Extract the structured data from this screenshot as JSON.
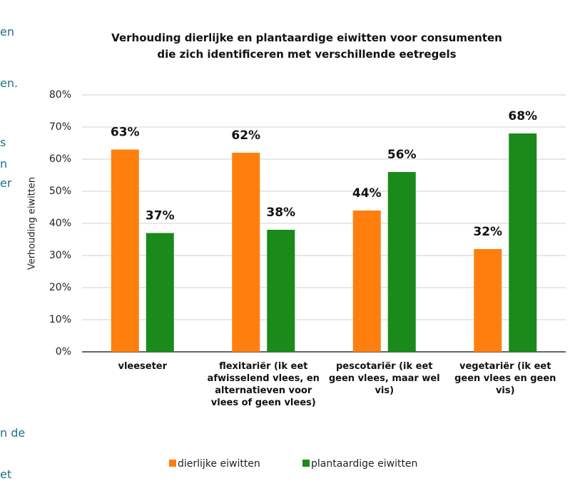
{
  "background_text": [
    "en",
    "en.",
    "s",
    "n",
    "er",
    "n de",
    "et"
  ],
  "chart_data": {
    "type": "bar",
    "title": "Verhouding dierlijke en plantaardige eiwitten voor consumenten die zich identificeren met verschillende eetregels",
    "y_label": "Verhouding eiwitten",
    "categories": [
      "vleeseter",
      "flexitariër (ik eet afwisselend vlees, en alternatieven voor vlees of geen vlees)",
      "pescotariër (ik eet geen vlees, maar wel vis)",
      "vegetariër (ik eet geen vlees en geen vis)"
    ],
    "series": [
      {
        "name": "dierlijke eiwitten",
        "color": "#ff7f0e",
        "values": [
          63,
          62,
          44,
          32
        ],
        "value_labels": [
          "63%",
          "62%",
          "44%",
          "32%"
        ]
      },
      {
        "name": "plantaardige eiwitten",
        "color": "#1a8a1a",
        "values": [
          37,
          38,
          56,
          68
        ],
        "value_labels": [
          "37%",
          "38%",
          "56%",
          "68%"
        ]
      }
    ],
    "ylim": [
      0,
      80
    ],
    "yticks": [
      {
        "value": 0,
        "label": "0%"
      },
      {
        "value": 10,
        "label": "10%"
      },
      {
        "value": 20,
        "label": "20%"
      },
      {
        "value": 30,
        "label": "30%"
      },
      {
        "value": 40,
        "label": "40%"
      },
      {
        "value": 50,
        "label": "50%"
      },
      {
        "value": 60,
        "label": "60%"
      },
      {
        "value": 70,
        "label": "70%"
      },
      {
        "value": 80,
        "label": "80%"
      }
    ],
    "grid": true,
    "legend": "bottom"
  }
}
